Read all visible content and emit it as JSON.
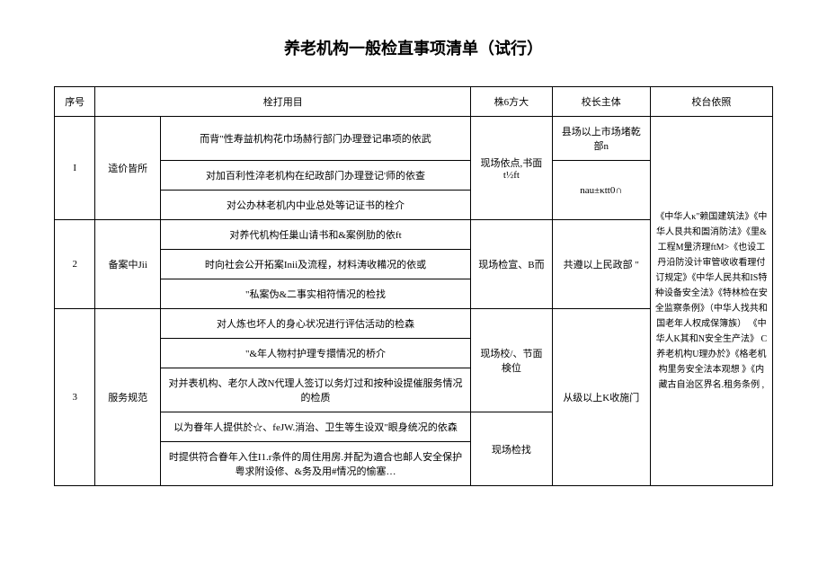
{
  "title": "养老机构一般检直事项清单（试行）",
  "headers": {
    "seq": "序号",
    "item": "栓打用目",
    "method": "株6方大",
    "subject": "校长主体",
    "basis": "校台依照"
  },
  "rows": [
    {
      "seq": "I",
      "category": "逵价皆所",
      "items": [
        "而背\"性寿益机构花巾场赫行部门办理登记串项的依武",
        "对加百利性淬老机构在纪政部门办理登记'师的依查",
        "对公办林老机内中业总处等记证书的栓介"
      ],
      "method": "现场依点,书面t½ft",
      "subjects": [
        "县场以上市场堵乾部n",
        "nau±κtt0∩"
      ]
    },
    {
      "seq": "2",
      "category": "备案中Jii",
      "items": [
        "对养代机构任巢山请书和&案例肋的依ft",
        "时向社会公开拓案Inii及流程，材料涛收糒况的依或",
        "\"私案伪&二事实相符情况的检找"
      ],
      "method": "现场检宣、B而",
      "subject": "共遵以上民政部 \""
    },
    {
      "seq": "3",
      "category": "服务规范",
      "items": [
        "对人炼也坏人的身心状况进行评估活动的检森",
        "\"&年人物村护理专擐情况的桥介",
        "对并表机构、老尔人改N代理人签订以务灯过和按种设提催服务情况的检质",
        "以为眷年人提供於☆、feJW.消治、卫生等生设双\"眼身统况的依森",
        "时提供符合眷年入住I1.r条件的周住用房.并配为適合也邮人安全保护粤求附设修、&务及用#情况的愉塞…"
      ],
      "methods": [
        "现场校/、节面検位",
        "现场检找"
      ],
      "subject": "从级以上K收施门"
    }
  ],
  "basis": "《中华人κ\"赖国建筑法》《中华人艮共和圄消防法》《里&工程M量济理ftM>《也设工丹沿防没计审管收收看理付订规定》《中华人民共和IS特种设备安全法》《特林检在安全监察条例》（中华人找共和国老年人权成保簿族） 《中华人K其和N安全生产法》 C养老机构U理办於》《格老机构里务安全法本观想 》《内藏古自治区界名.租务条例 ,"
}
